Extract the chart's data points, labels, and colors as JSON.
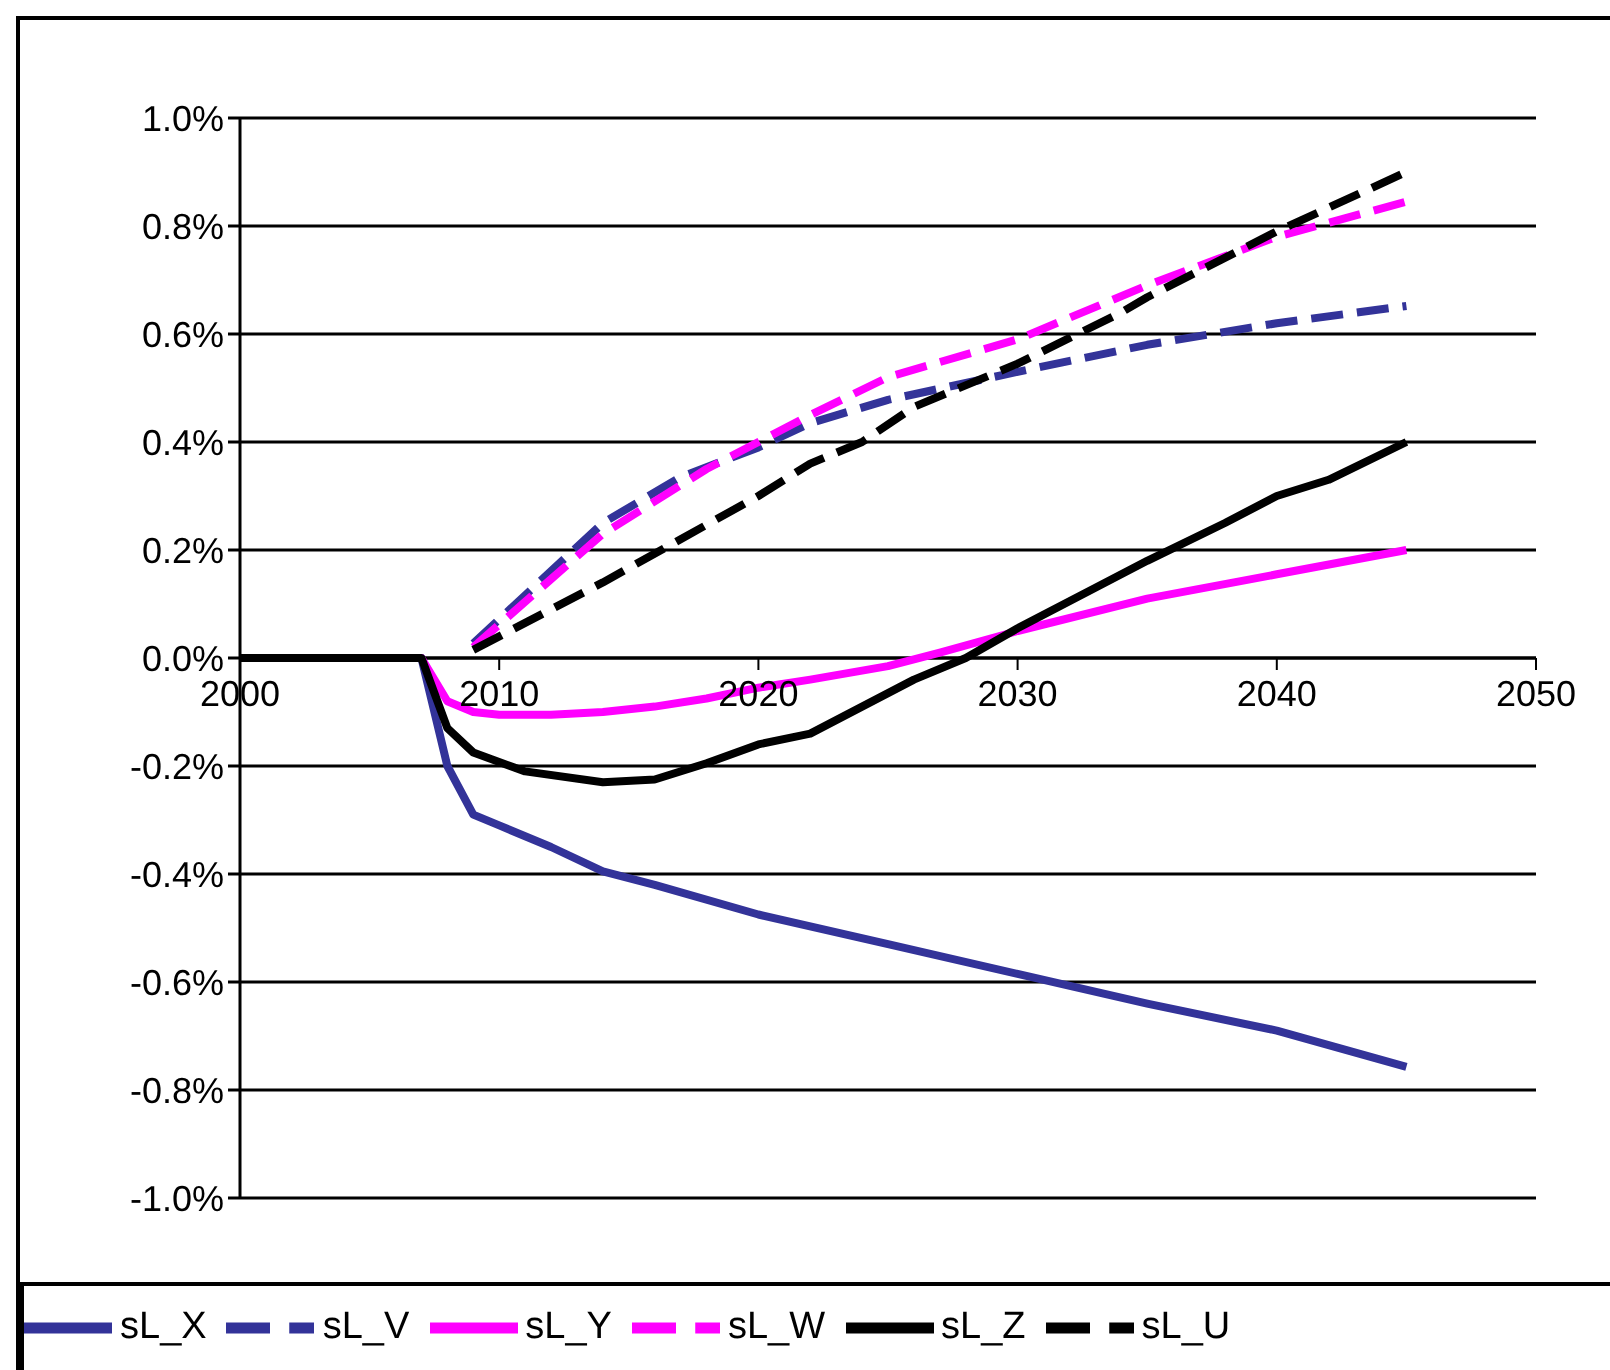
{
  "chart_data": {
    "type": "line",
    "xlim": [
      2000,
      2050
    ],
    "xticks": [
      2000,
      2010,
      2020,
      2030,
      2040,
      2050
    ],
    "ylim": [
      -1,
      1
    ],
    "yticks": [
      {
        "value": -1,
        "label": "-1.0%"
      },
      {
        "value": -0.8,
        "label": "-0.8%"
      },
      {
        "value": -0.6,
        "label": "-0.6%"
      },
      {
        "value": -0.4,
        "label": "-0.4%"
      },
      {
        "value": -0.2,
        "label": "-0.2%"
      },
      {
        "value": 0,
        "label": "0.0%"
      },
      {
        "value": 0.2,
        "label": "0.2%"
      },
      {
        "value": 0.4,
        "label": "0.4%"
      },
      {
        "value": 0.6,
        "label": "0.6%"
      },
      {
        "value": 0.8,
        "label": "0.8%"
      },
      {
        "value": 1,
        "label": "1.0%"
      }
    ],
    "grid": "y",
    "legend": "bottom",
    "marker": "none",
    "series": [
      {
        "name": "sL_X",
        "color": "#333399",
        "line_style": "solid",
        "x": [
          2000,
          2007,
          2008,
          2009,
          2010,
          2012,
          2014,
          2016,
          2020,
          2025,
          2030,
          2035,
          2040,
          2045
        ],
        "values": [
          0,
          0,
          -0.2,
          -0.29,
          -0.31,
          -0.35,
          -0.395,
          -0.42,
          -0.475,
          -0.53,
          -0.585,
          -0.64,
          -0.69,
          -0.757
        ]
      },
      {
        "name": "sL_V",
        "color": "#333399",
        "line_style": "dashed",
        "x": [
          2009,
          2014,
          2017,
          2020,
          2022,
          2025,
          2030,
          2035,
          2040,
          2045
        ],
        "values": [
          0.027,
          0.25,
          0.335,
          0.39,
          0.435,
          0.478,
          0.53,
          0.58,
          0.62,
          0.652
        ]
      },
      {
        "name": "sL_Y",
        "color": "#ff00ff",
        "line_style": "solid",
        "x": [
          2000,
          2007,
          2008,
          2009,
          2010,
          2012,
          2014,
          2016,
          2018,
          2020,
          2022,
          2025,
          2027,
          2030,
          2035,
          2040,
          2045
        ],
        "values": [
          0,
          0,
          -0.08,
          -0.1,
          -0.105,
          -0.105,
          -0.1,
          -0.09,
          -0.075,
          -0.055,
          -0.04,
          -0.015,
          0.01,
          0.05,
          0.11,
          0.155,
          0.2
        ]
      },
      {
        "name": "sL_W",
        "color": "#ff00ff",
        "line_style": "dashed",
        "x": [
          2009,
          2014,
          2018,
          2020,
          2022,
          2025,
          2030,
          2035,
          2040,
          2045
        ],
        "values": [
          0.02,
          0.23,
          0.35,
          0.4,
          0.45,
          0.52,
          0.59,
          0.69,
          0.78,
          0.845
        ]
      },
      {
        "name": "sL_Z",
        "color": "#000000",
        "line_style": "solid",
        "x": [
          2000,
          2007,
          2008,
          2009,
          2011,
          2014,
          2016,
          2018,
          2020,
          2022,
          2024,
          2026,
          2028,
          2030,
          2033,
          2035,
          2038,
          2040,
          2042,
          2045
        ],
        "values": [
          0,
          0,
          -0.13,
          -0.175,
          -0.21,
          -0.23,
          -0.225,
          -0.195,
          -0.16,
          -0.14,
          -0.09,
          -0.04,
          0,
          0.055,
          0.13,
          0.18,
          0.25,
          0.3,
          0.33,
          0.4
        ]
      },
      {
        "name": "sL_U",
        "color": "#000000",
        "line_style": "dashed",
        "x": [
          2009,
          2012,
          2014,
          2017,
          2020,
          2022,
          2024,
          2026,
          2030,
          2034,
          2035,
          2040,
          2045
        ],
        "values": [
          0.015,
          0.09,
          0.14,
          0.22,
          0.3,
          0.36,
          0.4,
          0.465,
          0.545,
          0.64,
          0.668,
          0.79,
          0.9
        ]
      }
    ]
  }
}
